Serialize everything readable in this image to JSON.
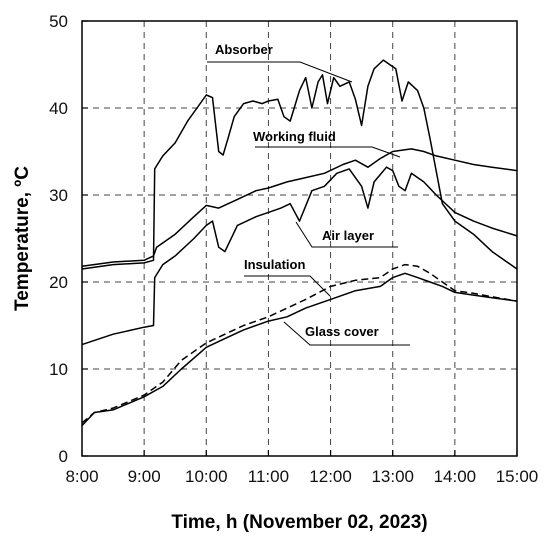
{
  "chart_data": {
    "type": "line",
    "xlabel": "Time, h (November 02, 2023)",
    "ylabel": "Temperature, ºC",
    "xlim": [
      8,
      15
    ],
    "ylim": [
      0,
      50
    ],
    "x_ticks": [
      8,
      9,
      10,
      11,
      12,
      13,
      14,
      15
    ],
    "x_tick_labels": [
      "8:00",
      "9:00",
      "10:00",
      "11:00",
      "12:00",
      "13:00",
      "14:00",
      "15:00"
    ],
    "y_ticks": [
      0,
      10,
      20,
      30,
      40,
      50
    ],
    "y_tick_labels": [
      "0",
      "10",
      "20",
      "30",
      "40",
      "50"
    ],
    "grid": true,
    "series": [
      {
        "name": "Absorber",
        "style": "solid",
        "x": [
          8.0,
          8.5,
          9.0,
          9.15,
          9.17,
          9.3,
          9.5,
          9.7,
          9.85,
          10.0,
          10.1,
          10.2,
          10.27,
          10.35,
          10.45,
          10.6,
          10.75,
          10.9,
          11.0,
          11.15,
          11.25,
          11.35,
          11.5,
          11.6,
          11.7,
          11.8,
          11.87,
          11.95,
          12.05,
          12.15,
          12.3,
          12.4,
          12.5,
          12.6,
          12.7,
          12.85,
          12.95,
          13.05,
          13.15,
          13.25,
          13.4,
          13.5,
          13.6,
          13.8,
          14.0,
          14.3,
          14.6,
          15.0
        ],
        "y": [
          21.5,
          22.0,
          22.2,
          22.5,
          33.0,
          34.5,
          36.0,
          38.5,
          40.0,
          41.5,
          41.2,
          35.0,
          34.6,
          36.5,
          39.0,
          40.5,
          40.8,
          40.5,
          40.8,
          41.0,
          39.0,
          38.5,
          42.0,
          43.5,
          40.0,
          43.0,
          43.8,
          40.5,
          43.5,
          42.5,
          43.0,
          41.0,
          38.0,
          42.5,
          44.5,
          45.5,
          45.0,
          44.5,
          40.8,
          43.0,
          42.0,
          40.0,
          36.5,
          29.0,
          27.0,
          25.5,
          23.5,
          21.5
        ]
      },
      {
        "name": "Working fluid",
        "style": "solid",
        "x": [
          8.0,
          8.5,
          9.0,
          9.15,
          9.2,
          9.5,
          9.8,
          10.0,
          10.2,
          10.5,
          10.8,
          11.0,
          11.3,
          11.6,
          11.9,
          12.2,
          12.4,
          12.6,
          12.8,
          13.0,
          13.3,
          13.5,
          13.7,
          14.0,
          14.3,
          14.6,
          15.0
        ],
        "y": [
          21.8,
          22.3,
          22.5,
          23.0,
          24.0,
          25.5,
          27.5,
          28.8,
          28.5,
          29.5,
          30.5,
          30.8,
          31.5,
          32.0,
          32.5,
          33.5,
          34.0,
          33.2,
          34.2,
          35.0,
          35.3,
          35.0,
          34.5,
          34.0,
          33.5,
          33.2,
          32.8
        ]
      },
      {
        "name": "Air layer",
        "style": "solid",
        "x": [
          8.0,
          8.5,
          9.0,
          9.15,
          9.17,
          9.3,
          9.5,
          9.8,
          10.0,
          10.1,
          10.2,
          10.3,
          10.5,
          10.8,
          11.0,
          11.2,
          11.35,
          11.5,
          11.7,
          11.9,
          12.1,
          12.3,
          12.5,
          12.6,
          12.7,
          12.9,
          13.0,
          13.1,
          13.2,
          13.3,
          13.5,
          13.7,
          14.0,
          14.3,
          14.6,
          15.0
        ],
        "y": [
          12.8,
          14.0,
          14.8,
          15.0,
          20.5,
          22.0,
          23.0,
          25.0,
          26.5,
          27.0,
          24.0,
          23.5,
          26.5,
          27.5,
          28.0,
          28.5,
          29.0,
          27.0,
          30.5,
          31.0,
          32.5,
          33.0,
          31.0,
          28.5,
          31.5,
          33.2,
          32.8,
          31.0,
          30.5,
          32.5,
          31.5,
          30.0,
          28.0,
          27.0,
          26.2,
          25.3
        ]
      },
      {
        "name": "Insulation",
        "style": "dashed",
        "x": [
          8.0,
          8.2,
          8.5,
          9.0,
          9.3,
          9.6,
          10.0,
          10.3,
          10.6,
          11.0,
          11.3,
          11.6,
          12.0,
          12.4,
          12.8,
          13.0,
          13.2,
          13.4,
          13.6,
          13.8,
          14.0,
          14.3,
          14.6,
          15.0
        ],
        "y": [
          3.8,
          5.0,
          5.5,
          7.0,
          8.5,
          11.0,
          13.0,
          14.0,
          15.0,
          16.0,
          17.0,
          18.0,
          19.5,
          20.2,
          20.5,
          21.5,
          22.0,
          21.8,
          21.0,
          20.0,
          19.0,
          18.7,
          18.3,
          17.8
        ]
      },
      {
        "name": "Glass cover",
        "style": "solid",
        "x": [
          8.0,
          8.2,
          8.5,
          9.0,
          9.3,
          9.6,
          10.0,
          10.3,
          10.6,
          11.0,
          11.3,
          11.6,
          12.0,
          12.4,
          12.8,
          13.0,
          13.2,
          13.4,
          13.6,
          13.8,
          14.0,
          14.3,
          14.6,
          15.0
        ],
        "y": [
          3.5,
          5.0,
          5.3,
          6.8,
          8.0,
          10.0,
          12.5,
          13.5,
          14.5,
          15.5,
          16.0,
          17.0,
          18.0,
          19.0,
          19.5,
          20.5,
          21.0,
          20.5,
          20.0,
          19.5,
          18.8,
          18.5,
          18.2,
          17.8
        ]
      }
    ]
  }
}
